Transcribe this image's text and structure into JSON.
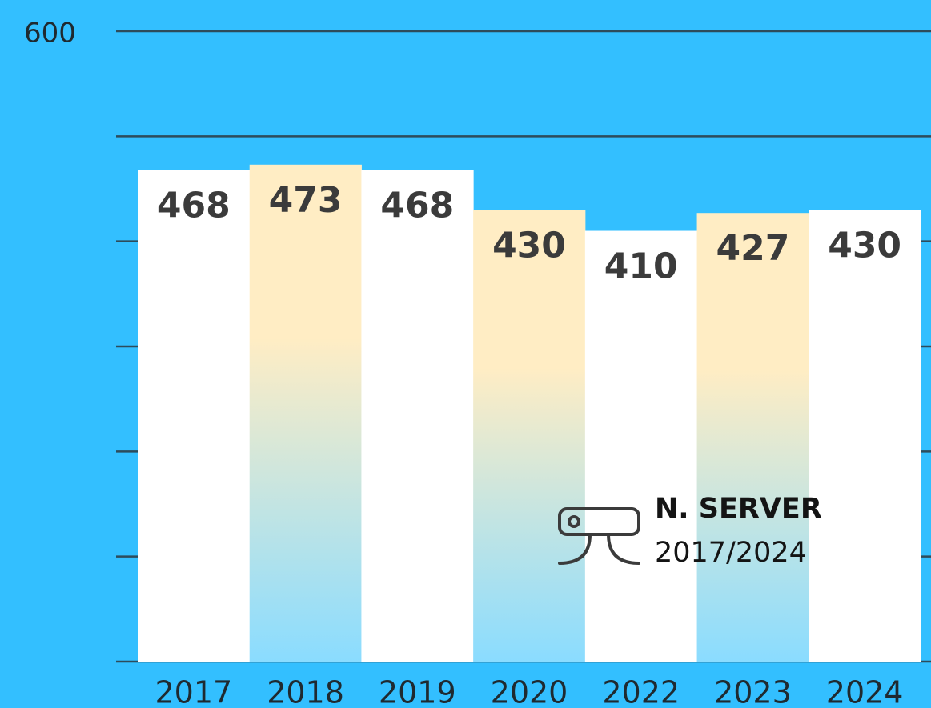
{
  "chart_data": {
    "type": "bar",
    "categories": [
      "2017",
      "2018",
      "2019",
      "2020",
      "2022",
      "2023",
      "2024"
    ],
    "values": [
      468,
      473,
      468,
      430,
      410,
      427,
      430
    ],
    "colors": [
      "#ffffff",
      "#ffedc4",
      "#ffffff",
      "#ffedc4",
      "#ffffff",
      "#ffedc4",
      "#ffffff"
    ],
    "gradient_bottom": "#8adcff",
    "background": "#33bfff",
    "ylim": [
      0,
      600
    ],
    "yticks": [
      {
        "value": 0,
        "label": null
      },
      {
        "value": 100,
        "label": null
      },
      {
        "value": 200,
        "label": null
      },
      {
        "value": 300,
        "label": null
      },
      {
        "value": 400,
        "label": null
      },
      {
        "value": 500,
        "label": null
      },
      600
    ],
    "grid": true,
    "legend_title": "N. SERVER",
    "legend_subtitle": "2017/2024"
  }
}
